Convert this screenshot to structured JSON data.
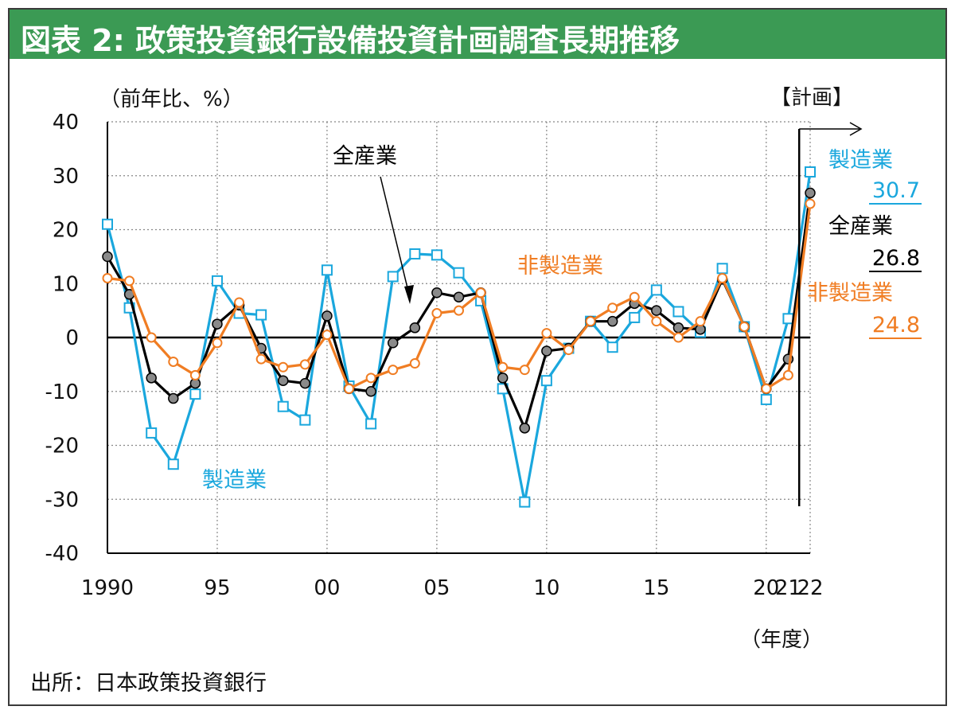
{
  "title": "図表 2: 政策投資銀行設備投資計画調査長期推移",
  "source": "出所：日本政策投資銀行",
  "colors": {
    "title_bg": "#3b9a54",
    "manufacturing": "#1aa7dd",
    "all_industry": "#000000",
    "all_industry_marker": "#8a8a8a",
    "non_manufacturing": "#f07d23"
  },
  "chart_data": {
    "type": "line",
    "ylabel": "（前年比、%）",
    "xlabel": "（年度）",
    "plan_label": "【計画】",
    "ylim": [
      -40,
      40
    ],
    "yticks": [
      40,
      30,
      20,
      10,
      0,
      -10,
      -20,
      -30,
      -40
    ],
    "xlim": [
      1990,
      2022
    ],
    "xticks": [
      {
        "value": 1990,
        "label": "1990"
      },
      {
        "value": 1995,
        "label": "95"
      },
      {
        "value": 2000,
        "label": "00"
      },
      {
        "value": 2005,
        "label": "05"
      },
      {
        "value": 2010,
        "label": "10"
      },
      {
        "value": 2015,
        "label": "15"
      },
      {
        "value": 2020,
        "label": "20"
      },
      {
        "value": 2021,
        "label": "21"
      },
      {
        "value": 2022,
        "label": "22"
      }
    ],
    "grid": "dotted-horizontal",
    "x": [
      1990,
      1991,
      1992,
      1993,
      1994,
      1995,
      1996,
      1997,
      1998,
      1999,
      2000,
      2001,
      2002,
      2003,
      2004,
      2005,
      2006,
      2007,
      2008,
      2009,
      2010,
      2011,
      2012,
      2013,
      2014,
      2015,
      2016,
      2017,
      2018,
      2019,
      2020,
      2021,
      2022
    ],
    "series": [
      {
        "name": "製造業",
        "color": "#1aa7dd",
        "marker": "square",
        "values": [
          21,
          5.5,
          -17.7,
          -23.5,
          -10.5,
          10.5,
          4.5,
          4.2,
          -12.8,
          -15.3,
          12.5,
          -9,
          -16,
          11.3,
          15.5,
          15.3,
          12,
          6.8,
          -9.5,
          -30.5,
          -8,
          -2,
          3,
          -1.8,
          3.7,
          8.8,
          4.8,
          1,
          12.8,
          2,
          -11.5,
          3.5,
          30.7
        ]
      },
      {
        "name": "全産業",
        "color": "#000000",
        "marker": "circle",
        "values": [
          15,
          8,
          -7.5,
          -11.3,
          -8.5,
          2.5,
          6,
          -2,
          -8,
          -8.5,
          4,
          -9.5,
          -10,
          -1,
          1.8,
          8.3,
          7.5,
          8.3,
          -7.5,
          -16.8,
          -2.5,
          -2,
          3,
          3,
          6.3,
          5,
          1.8,
          1.5,
          10.8,
          2,
          -9.5,
          -4,
          26.8
        ]
      },
      {
        "name": "非製造業",
        "color": "#f07d23",
        "marker": "circle",
        "values": [
          11,
          10.5,
          0,
          -4.5,
          -7,
          -1,
          6.5,
          -4,
          -5.5,
          -5,
          0.5,
          -9.5,
          -7.5,
          -6,
          -4.8,
          4.5,
          5,
          8.3,
          -5.5,
          -6,
          0.8,
          -2.3,
          3,
          5.5,
          7.5,
          3,
          0,
          3,
          11,
          2,
          -9.5,
          -7,
          24.8
        ]
      }
    ],
    "annotations": {
      "all_industry_label": "全産業",
      "non_manufacturing_label": "非製造業",
      "manufacturing_label": "製造業",
      "right_legend": [
        {
          "name": "製造業",
          "value": "30.7",
          "color": "#1aa7dd"
        },
        {
          "name": "全産業",
          "value": "26.8",
          "color": "#000000"
        },
        {
          "name": "非製造業",
          "value": "24.8",
          "color": "#f07d23"
        }
      ]
    }
  }
}
